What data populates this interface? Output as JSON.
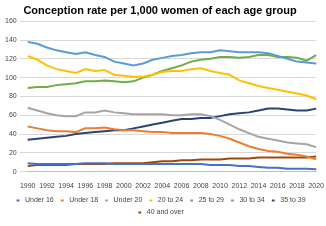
{
  "chart_data": {
    "type": "line",
    "title": "Conception rate per 1,000 women of each age group",
    "categories": [
      "1990",
      null,
      "1992",
      null,
      "1994",
      null,
      "1996",
      null,
      "1998",
      null,
      "2000",
      null,
      "2002",
      null,
      "2004",
      null,
      "2006",
      null,
      "2008",
      null,
      "2010",
      null,
      "2012",
      null,
      "2014",
      null,
      "2016",
      null,
      "2018",
      null,
      "2020"
    ],
    "series": [
      {
        "name": "Under 16",
        "color": "#4472c4",
        "values": [
          9,
          8,
          8,
          8,
          8,
          8,
          9,
          9,
          9,
          8,
          8,
          8,
          8,
          8,
          8,
          8,
          8,
          8,
          8,
          7,
          7,
          7,
          6,
          6,
          5,
          4,
          4,
          3,
          3,
          3,
          2.5
        ]
      },
      {
        "name": "Under 18",
        "color": "#ed7d31",
        "values": [
          48,
          46,
          44,
          43,
          43,
          42,
          46,
          46,
          47,
          45,
          44,
          44,
          43,
          42,
          42,
          41,
          41,
          41,
          41,
          40,
          38,
          35,
          31,
          27,
          24,
          22,
          21,
          19,
          18,
          16,
          13
        ]
      },
      {
        "name": "Under 20",
        "color": "#a5a5a5",
        "values": [
          68,
          65,
          62,
          60,
          59,
          59,
          63,
          63,
          65,
          63,
          62,
          61,
          61,
          61,
          61,
          60,
          60,
          61,
          61,
          59,
          55,
          50,
          45,
          41,
          37,
          35,
          33,
          31,
          30,
          29,
          26
        ]
      },
      {
        "name": "20 to 24",
        "color": "#ffc000",
        "values": [
          123,
          119,
          113,
          109,
          107,
          105,
          109,
          107,
          108,
          103,
          102,
          101,
          101,
          103,
          106,
          107,
          107,
          109,
          110,
          107,
          105,
          103,
          97,
          94,
          91,
          89,
          87,
          85,
          83,
          81,
          77
        ]
      },
      {
        "name": "25 to 29",
        "color": "#5b9bd5",
        "values": [
          138,
          136,
          132,
          129,
          127,
          125,
          127,
          124,
          122,
          117,
          115,
          113,
          115,
          119,
          121,
          123,
          124,
          126,
          127,
          127,
          129,
          128,
          127,
          127,
          127,
          126,
          123,
          120,
          117,
          116,
          115
        ]
      },
      {
        "name": "30 to 34",
        "color": "#70ad47",
        "values": [
          89,
          90,
          90,
          92,
          93,
          94,
          96,
          96,
          97,
          96,
          95,
          96,
          100,
          103,
          107,
          110,
          113,
          117,
          119,
          120,
          122,
          122,
          121,
          122,
          124,
          124,
          122,
          122,
          121,
          118,
          124
        ]
      },
      {
        "name": "35 to 39",
        "color": "#264478",
        "values": [
          34,
          35,
          36,
          37,
          38,
          40,
          41,
          42,
          43,
          44,
          44,
          46,
          48,
          50,
          52,
          54,
          56,
          56,
          57,
          57,
          59,
          61,
          62,
          63,
          65,
          67,
          67,
          66,
          65,
          65,
          67
        ]
      },
      {
        "name": "40 and over",
        "color": "#9e480e",
        "values": [
          6,
          7,
          7,
          7,
          7,
          8,
          8,
          8,
          8,
          9,
          9,
          9,
          9,
          10,
          11,
          11,
          12,
          12,
          13,
          13,
          13,
          14,
          14,
          14,
          15,
          15,
          15,
          15,
          15,
          15,
          16
        ]
      }
    ],
    "ylim": [
      0,
      160
    ],
    "yticks": [
      0,
      20,
      40,
      60,
      80,
      100,
      120,
      140,
      160
    ],
    "grid": true,
    "legend": "bottom"
  }
}
